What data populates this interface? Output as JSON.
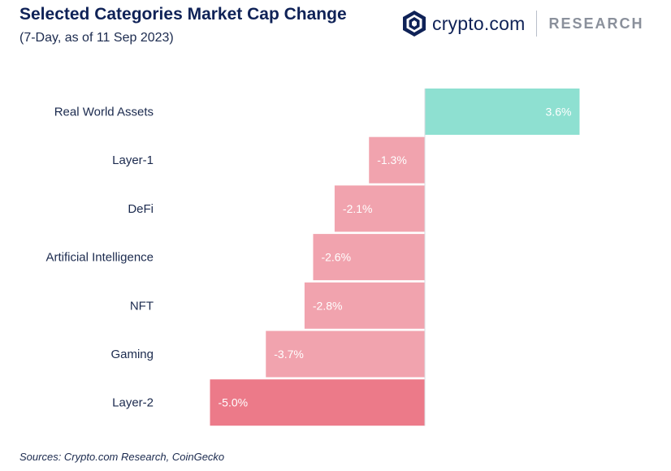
{
  "header": {
    "title": "Selected Categories Market Cap Change",
    "subtitle": "(7-Day, as of 11 Sep 2023)"
  },
  "brand": {
    "name": "crypto.com",
    "section": "RESEARCH",
    "logo_icon": "crypto-com-logo-icon"
  },
  "footer": {
    "source": "Sources: Crypto.com Research, CoinGecko"
  },
  "colors": {
    "positive": "#8ee0d1",
    "negative": "#f1a3ae",
    "negative_strong": "#ec7a89",
    "label_text": "#1b2a4e",
    "value_text": "#ffffff",
    "title": "#0f2257"
  },
  "chart_data": {
    "type": "bar",
    "orientation": "horizontal",
    "categories": [
      "Real World Assets",
      "Layer-1",
      "DeFi",
      "Artificial Intelligence",
      "NFT",
      "Gaming",
      "Layer-2"
    ],
    "values": [
      3.6,
      -1.3,
      -2.1,
      -2.6,
      -2.8,
      -3.7,
      -5.0
    ],
    "value_labels": [
      "3.6%",
      "-1.3%",
      "-2.1%",
      "-2.6%",
      "-2.8%",
      "-3.7%",
      "-5.0%"
    ],
    "unit": "%",
    "xlim": [
      -5.0,
      3.6
    ],
    "title": "Selected Categories Market Cap Change",
    "subtitle": "(7-Day, as of 11 Sep 2023)",
    "xlabel": "",
    "ylabel": "",
    "grid": false,
    "legend": "none"
  }
}
